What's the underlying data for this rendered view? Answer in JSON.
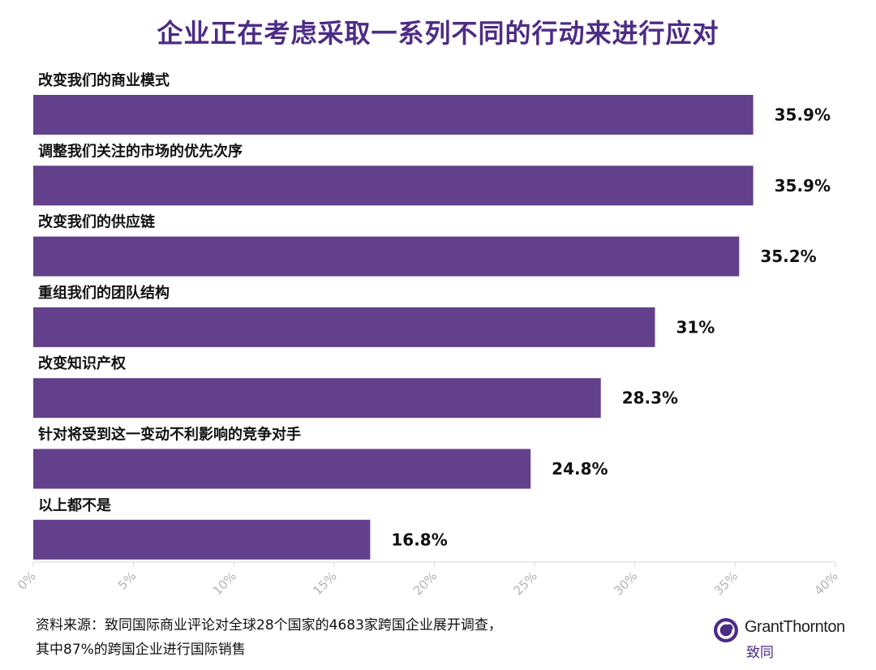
{
  "chart_data": {
    "type": "bar",
    "orientation": "horizontal",
    "title": "企业正在考虑采取一系列不同的行动来进行应对",
    "categories": [
      "改变我们的商业模式",
      "调整我们关注的市场的优先次序",
      "改变我们的供应链",
      "重组我们的团队结构",
      "改变知识产权",
      "针对将受到这一变动不利影响的竞争对手",
      "以上都不是"
    ],
    "values": [
      35.9,
      35.9,
      35.2,
      31,
      28.3,
      24.8,
      16.8
    ],
    "value_labels": [
      "35.9%",
      "35.9%",
      "35.2%",
      "31%",
      "28.3%",
      "24.8%",
      "16.8%"
    ],
    "xlim": [
      0,
      40
    ],
    "x_ticks": [
      0,
      5,
      10,
      15,
      20,
      25,
      30,
      35,
      40
    ],
    "x_tick_labels": [
      "0%",
      "5%",
      "10%",
      "15%",
      "20%",
      "25%",
      "30%",
      "35%",
      "40%"
    ],
    "xlabel": "",
    "ylabel": "",
    "grid": false,
    "legend": "none",
    "bar_color": "#63408b"
  },
  "source": {
    "line1": "资料来源：致同国际商业评论对全球28个国家的4683家跨国企业展开调查，",
    "line2": "其中87%的跨国企业进行国际销售"
  },
  "logo": {
    "name": "GrantThornton",
    "cn": "致同",
    "color": "#4d2c86"
  }
}
